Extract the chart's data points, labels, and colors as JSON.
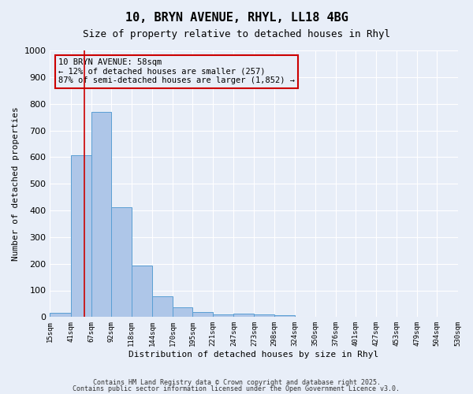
{
  "title1": "10, BRYN AVENUE, RHYL, LL18 4BG",
  "title2": "Size of property relative to detached houses in Rhyl",
  "xlabel": "Distribution of detached houses by size in Rhyl",
  "ylabel": "Number of detached properties",
  "bar_color": "#aec6e8",
  "bar_edge_color": "#5a9fd4",
  "bg_color": "#e8eef8",
  "grid_color": "#ffffff",
  "vline_color": "#cc0000",
  "vline_x": 58,
  "annotation_text": "10 BRYN AVENUE: 58sqm\n← 12% of detached houses are smaller (257)\n87% of semi-detached houses are larger (1,852) →",
  "annotation_box_color": "#cc0000",
  "bins": [
    15,
    41,
    67,
    92,
    118,
    144,
    170,
    195,
    221,
    247,
    273,
    298,
    324,
    350,
    376,
    401,
    427,
    453,
    479,
    504,
    530
  ],
  "counts": [
    15,
    607,
    770,
    413,
    193,
    78,
    37,
    18,
    10,
    12,
    10,
    8,
    0,
    0,
    0,
    0,
    0,
    0,
    0,
    0
  ],
  "ylim": [
    0,
    1000
  ],
  "yticks": [
    0,
    100,
    200,
    300,
    400,
    500,
    600,
    700,
    800,
    900,
    1000
  ],
  "footer1": "Contains HM Land Registry data © Crown copyright and database right 2025.",
  "footer2": "Contains public sector information licensed under the Open Government Licence v3.0."
}
